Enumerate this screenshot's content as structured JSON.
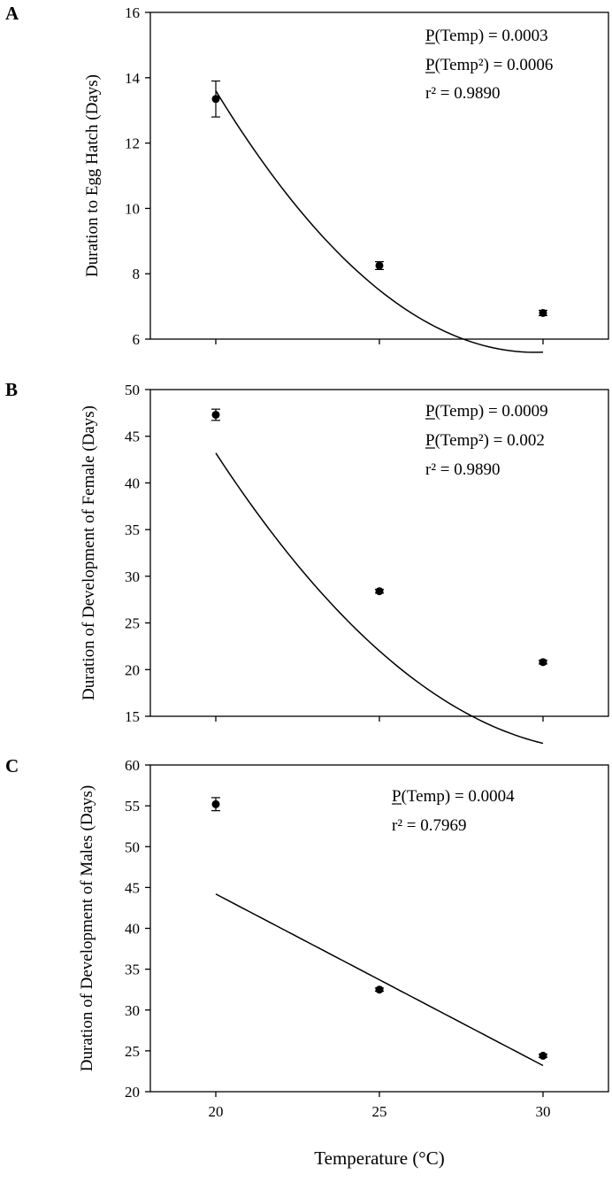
{
  "chart_data": [
    {
      "type": "scatter",
      "panel": "A",
      "title": "",
      "xlabel": "",
      "ylabel": "Duration to Egg Hatch (Days)",
      "x": [
        20,
        25,
        30
      ],
      "y": [
        13.35,
        8.25,
        6.8
      ],
      "error": [
        0.55,
        0.12,
        0.08
      ],
      "xlim": [
        18,
        32
      ],
      "ylim": [
        6,
        16
      ],
      "yticks": [
        6,
        8,
        10,
        12,
        14,
        16
      ],
      "xticks": [
        20,
        25,
        30
      ],
      "xtick_labels_shown": false,
      "fit": {
        "kind": "quadratic",
        "coef": [
          80.0,
          -5.0,
          0.084
        ]
      },
      "annotations": [
        {
          "text": "P(Temp) = 0.0003"
        },
        {
          "text": "P(Temp²) = 0.0006"
        },
        {
          "text": "r² = 0.9890"
        }
      ],
      "grid": false
    },
    {
      "type": "scatter",
      "panel": "B",
      "title": "",
      "xlabel": "",
      "ylabel": "Duration of Development of Female (Days)",
      "x": [
        20,
        25,
        30
      ],
      "y": [
        47.3,
        28.4,
        20.8
      ],
      "error": [
        0.6,
        0.2,
        0.2
      ],
      "xlim": [
        18,
        32
      ],
      "ylim": [
        15,
        50
      ],
      "yticks": [
        15,
        20,
        25,
        30,
        35,
        40,
        45,
        50
      ],
      "xticks": [
        20,
        25,
        30
      ],
      "xtick_labels_shown": false,
      "fit": {
        "kind": "quadratic",
        "coef": [
          241.0,
          -14.41,
          0.226
        ]
      },
      "annotations": [
        {
          "text": "P(Temp) = 0.0009"
        },
        {
          "text": "P(Temp²) = 0.002"
        },
        {
          "text": "r² = 0.9890"
        }
      ],
      "grid": false
    },
    {
      "type": "scatter",
      "panel": "C",
      "title": "",
      "xlabel": "Temperature (°C)",
      "ylabel": "Duration of Development of Males (Days)",
      "x": [
        20,
        25,
        30
      ],
      "y": [
        55.2,
        32.5,
        24.4
      ],
      "error": [
        0.8,
        0.2,
        0.2
      ],
      "xlim": [
        18,
        32
      ],
      "ylim": [
        20,
        60
      ],
      "yticks": [
        20,
        25,
        30,
        35,
        40,
        45,
        50,
        55,
        60
      ],
      "xticks": [
        20,
        25,
        30
      ],
      "xtick_labels_shown": true,
      "fit": {
        "kind": "linear",
        "coef": [
          86.2,
          -2.1
        ]
      },
      "annotations": [
        {
          "text": "P(Temp) = 0.0004"
        },
        {
          "text": "r² = 0.7969"
        }
      ],
      "grid": false
    }
  ]
}
